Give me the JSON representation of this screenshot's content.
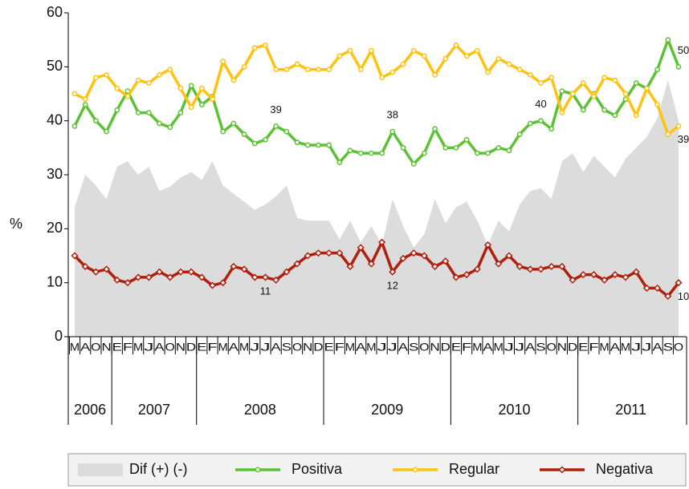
{
  "chart_data": {
    "type": "line",
    "y_label": "%",
    "ylim": [
      0,
      60
    ],
    "yticks": [
      0,
      10,
      20,
      30,
      40,
      50,
      60
    ],
    "year_groups": [
      {
        "label": "2006",
        "categories": [
          "M",
          "A",
          "O",
          "N"
        ]
      },
      {
        "label": "2007",
        "categories": [
          "E",
          "F",
          "M",
          "J",
          "A",
          "O",
          "N",
          "D"
        ]
      },
      {
        "label": "2008",
        "categories": [
          "E",
          "F",
          "M",
          "A",
          "M",
          "J",
          "J",
          "A",
          "S",
          "O",
          "N",
          "D"
        ]
      },
      {
        "label": "2009",
        "categories": [
          "E",
          "F",
          "M",
          "A",
          "M",
          "J",
          "J",
          "A",
          "S",
          "O",
          "N",
          "D"
        ]
      },
      {
        "label": "2010",
        "categories": [
          "E",
          "F",
          "M",
          "A",
          "M",
          "J",
          "J",
          "A",
          "S",
          "O",
          "N",
          "D"
        ]
      },
      {
        "label": "2011",
        "categories": [
          "E",
          "F",
          "M",
          "A",
          "M",
          "J",
          "J",
          "A",
          "S",
          "O"
        ]
      }
    ],
    "area": {
      "name": "Dif (+) (-)",
      "color": "#dcdcdc",
      "values": [
        24,
        30,
        28,
        25.5,
        31.5,
        32.5,
        30,
        31.5,
        27,
        27.8,
        29.5,
        30.5,
        29,
        32.5,
        28,
        26.5,
        25,
        23.5,
        24.5,
        26,
        28,
        22,
        21.5,
        21.5,
        21.5,
        18,
        21.5,
        17.5,
        20.5,
        17,
        25.5,
        20.5,
        16.5,
        19,
        25.5,
        21,
        24,
        25,
        21.5,
        17,
        21.5,
        19.5,
        24.5,
        27,
        27.5,
        25.5,
        32.5,
        34,
        30.5,
        33.5,
        31.5,
        29.5,
        33,
        35,
        37,
        40.5,
        47.5,
        40
      ]
    },
    "series": [
      {
        "name": "Positiva",
        "color": "#5cc234",
        "marker": "circle",
        "values": [
          39,
          43,
          40,
          38,
          42,
          45.5,
          41.5,
          41.5,
          39.5,
          38.8,
          41.5,
          46.5,
          43,
          44.5,
          38,
          39.5,
          37.5,
          35.8,
          36.5,
          39,
          38,
          36,
          35.5,
          35.5,
          35.5,
          32.3,
          34.5,
          34,
          34,
          34,
          38,
          35,
          32,
          34,
          38.5,
          35,
          35,
          36.5,
          34,
          34,
          35,
          34.5,
          37.5,
          39.5,
          40,
          38.5,
          45.5,
          45,
          42,
          45,
          42,
          41,
          44,
          47,
          46,
          49.5,
          55,
          50
        ],
        "value_labels": [
          null,
          null,
          null,
          null,
          null,
          null,
          null,
          null,
          null,
          null,
          null,
          null,
          null,
          null,
          null,
          null,
          null,
          null,
          null,
          "39",
          null,
          null,
          null,
          null,
          null,
          null,
          null,
          null,
          null,
          null,
          "38",
          null,
          null,
          null,
          null,
          null,
          null,
          null,
          null,
          null,
          null,
          null,
          null,
          null,
          "40",
          null,
          null,
          null,
          null,
          null,
          null,
          null,
          null,
          null,
          null,
          null,
          null,
          "50"
        ]
      },
      {
        "name": "Regular",
        "color": "#ffc20e",
        "marker": "circle",
        "values": [
          45,
          44,
          48,
          48.5,
          46,
          44.5,
          47.5,
          47,
          48.5,
          49.5,
          46,
          42.5,
          46,
          44,
          51,
          47.5,
          50,
          53.5,
          54,
          49.5,
          49.5,
          50.5,
          49.5,
          49.5,
          49.5,
          52,
          53,
          49.5,
          53,
          48,
          49,
          50.5,
          53,
          52,
          48.5,
          51.5,
          54,
          52,
          53,
          49,
          51.5,
          50.5,
          49.5,
          48.5,
          47,
          48,
          41.5,
          45,
          47,
          44.5,
          48,
          47.5,
          45,
          41,
          46,
          43,
          37.5,
          39
        ],
        "value_labels": [
          null,
          null,
          null,
          null,
          null,
          null,
          null,
          null,
          null,
          null,
          null,
          null,
          null,
          null,
          null,
          null,
          null,
          null,
          null,
          null,
          null,
          null,
          null,
          null,
          null,
          null,
          null,
          null,
          null,
          null,
          null,
          null,
          null,
          null,
          null,
          null,
          null,
          null,
          null,
          null,
          null,
          null,
          null,
          null,
          null,
          null,
          null,
          null,
          null,
          null,
          null,
          null,
          null,
          null,
          null,
          null,
          null,
          "39"
        ]
      },
      {
        "name": "Negativa",
        "color": "#b01e0c",
        "marker": "diamond",
        "values": [
          15,
          13,
          12,
          12.5,
          10.5,
          10,
          11,
          11,
          12,
          11,
          12,
          12,
          11,
          9.5,
          10,
          13,
          12.5,
          11,
          11,
          10.5,
          12,
          13.5,
          15,
          15.5,
          15.5,
          15.5,
          13,
          16.5,
          13.5,
          17.5,
          12,
          14.5,
          15.5,
          15,
          13,
          14,
          11,
          11.5,
          12.5,
          17,
          13.5,
          15,
          13,
          12.5,
          12.5,
          13,
          13,
          10.5,
          11.5,
          11.5,
          10.5,
          11.5,
          11,
          12,
          9,
          9,
          7.5,
          10
        ],
        "value_labels": [
          null,
          null,
          null,
          null,
          null,
          null,
          null,
          null,
          null,
          null,
          null,
          null,
          null,
          null,
          null,
          null,
          null,
          null,
          "11",
          null,
          null,
          null,
          null,
          null,
          null,
          null,
          null,
          null,
          null,
          null,
          "12",
          null,
          null,
          null,
          null,
          null,
          null,
          null,
          null,
          null,
          null,
          null,
          null,
          null,
          null,
          null,
          null,
          null,
          null,
          null,
          null,
          null,
          null,
          null,
          null,
          null,
          null,
          "10"
        ]
      }
    ]
  }
}
